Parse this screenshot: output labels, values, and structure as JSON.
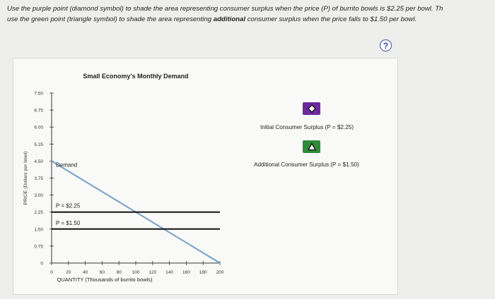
{
  "instructions": {
    "line1_a": "Use the purple point (diamond symbol) to shade the area representing consumer surplus when the price (P) of burrito bowls is $2.25 per bowl. Th",
    "line2_a": "use the green point (triangle symbol) to shade the area representing ",
    "line2_bold": "additional",
    "line2_b": " consumer surplus when the price falls to $1.50 per bowl."
  },
  "help_label": "?",
  "colors": {
    "demand": "#7fa7c9",
    "price_line": "#111111",
    "purple": "#6b2a9c",
    "green": "#2f8a3a",
    "help": "#3d4f9f"
  },
  "chart_data": {
    "type": "line",
    "title": "Small Economy's Monthly Demand",
    "xlabel": "QUANTITY (Thousands of burrito bowls)",
    "ylabel": "PRICE (Dollars per bowl)",
    "xlim": [
      0,
      200
    ],
    "ylim": [
      0,
      7.5
    ],
    "x_ticks": [
      0,
      20,
      40,
      60,
      80,
      100,
      120,
      140,
      160,
      180,
      200
    ],
    "y_ticks": [
      0,
      0.75,
      1.5,
      2.25,
      3.0,
      3.75,
      4.5,
      5.25,
      6.0,
      6.75,
      7.5
    ],
    "x_tick_labels": [
      "0",
      "20",
      "40",
      "60",
      "80",
      "100",
      "120",
      "140",
      "160",
      "180",
      "200"
    ],
    "y_tick_labels": [
      "0",
      "0.75",
      "1.50",
      "2.25",
      "3.00",
      "3.75",
      "4.50",
      "5.25",
      "6.00",
      "6.75",
      "7.50"
    ],
    "series": [
      {
        "name": "Demand",
        "x": [
          0,
          200
        ],
        "y": [
          4.5,
          0
        ]
      }
    ],
    "hlines": [
      {
        "label": "P = $2.25",
        "y": 2.25
      },
      {
        "label": "P = $1.50",
        "y": 1.5
      }
    ]
  },
  "legend": [
    {
      "symbol": "diamond",
      "symbol_glyph": "◇",
      "label": "Initial Consumer Surplus (P = $2.25)",
      "color": "#6b2a9c"
    },
    {
      "symbol": "triangle",
      "symbol_glyph": "△",
      "label": "Additional Consumer Surplus (P = $1.50)",
      "color": "#2f8a3a"
    }
  ]
}
